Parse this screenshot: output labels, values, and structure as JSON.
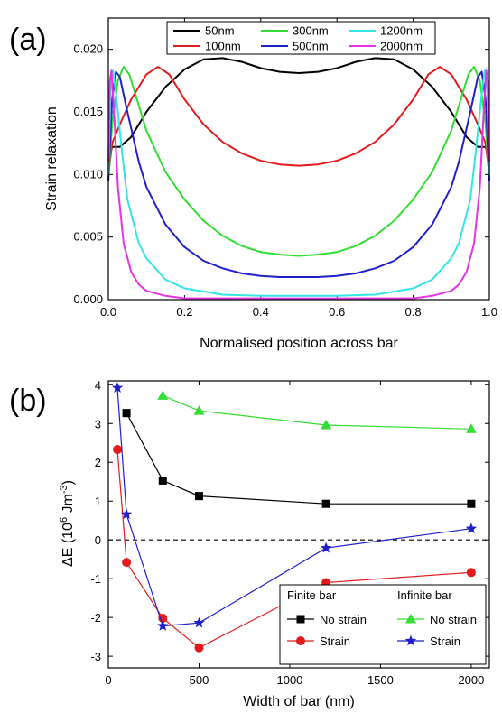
{
  "chart_data": [
    {
      "type": "line",
      "panel_label": "(a)",
      "xlabel": "Normalised position across bar",
      "ylabel": "Strain relaxation",
      "xlim": [
        0.0,
        1.0
      ],
      "ylim": [
        0.0,
        0.0225
      ],
      "xticks": [
        "0.0",
        "0.2",
        "0.4",
        "0.6",
        "0.8",
        "1.0"
      ],
      "yticks": [
        "0.000",
        "0.005",
        "0.010",
        "0.015",
        "0.020"
      ],
      "legend_position": "top",
      "series": [
        {
          "name": "50nm",
          "color": "#000000",
          "points": [
            [
              0.0,
              0.0112
            ],
            [
              0.01,
              0.0122
            ],
            [
              0.03,
              0.0122
            ],
            [
              0.06,
              0.013
            ],
            [
              0.1,
              0.015
            ],
            [
              0.15,
              0.017
            ],
            [
              0.2,
              0.0184
            ],
            [
              0.25,
              0.0192
            ],
            [
              0.3,
              0.0193
            ],
            [
              0.35,
              0.019
            ],
            [
              0.4,
              0.0185
            ],
            [
              0.45,
              0.0182
            ],
            [
              0.5,
              0.0181
            ],
            [
              0.55,
              0.0182
            ],
            [
              0.6,
              0.0185
            ],
            [
              0.65,
              0.019
            ],
            [
              0.7,
              0.0193
            ],
            [
              0.75,
              0.0192
            ],
            [
              0.8,
              0.0184
            ],
            [
              0.85,
              0.017
            ],
            [
              0.9,
              0.015
            ],
            [
              0.94,
              0.013
            ],
            [
              0.97,
              0.0122
            ],
            [
              0.99,
              0.0122
            ],
            [
              1.0,
              0.0112
            ]
          ]
        },
        {
          "name": "100nm",
          "color": "#e41a1c",
          "points": [
            [
              0.0,
              0.01
            ],
            [
              0.01,
              0.0125
            ],
            [
              0.03,
              0.014
            ],
            [
              0.06,
              0.016
            ],
            [
              0.1,
              0.018
            ],
            [
              0.13,
              0.0186
            ],
            [
              0.16,
              0.018
            ],
            [
              0.2,
              0.016
            ],
            [
              0.25,
              0.014
            ],
            [
              0.3,
              0.0126
            ],
            [
              0.35,
              0.0117
            ],
            [
              0.4,
              0.0111
            ],
            [
              0.45,
              0.0108
            ],
            [
              0.5,
              0.0107
            ],
            [
              0.55,
              0.0108
            ],
            [
              0.6,
              0.0111
            ],
            [
              0.65,
              0.0117
            ],
            [
              0.7,
              0.0126
            ],
            [
              0.75,
              0.014
            ],
            [
              0.8,
              0.016
            ],
            [
              0.84,
              0.018
            ],
            [
              0.87,
              0.0186
            ],
            [
              0.9,
              0.018
            ],
            [
              0.94,
              0.016
            ],
            [
              0.97,
              0.014
            ],
            [
              0.99,
              0.0125
            ],
            [
              1.0,
              0.01
            ]
          ]
        },
        {
          "name": "300nm",
          "color": "#33dd33",
          "points": [
            [
              0.0,
              0.0095
            ],
            [
              0.01,
              0.014
            ],
            [
              0.025,
              0.0175
            ],
            [
              0.04,
              0.0186
            ],
            [
              0.055,
              0.018
            ],
            [
              0.08,
              0.0155
            ],
            [
              0.1,
              0.0135
            ],
            [
              0.15,
              0.0102
            ],
            [
              0.2,
              0.008
            ],
            [
              0.25,
              0.0063
            ],
            [
              0.3,
              0.0051
            ],
            [
              0.35,
              0.0043
            ],
            [
              0.4,
              0.0038
            ],
            [
              0.45,
              0.0036
            ],
            [
              0.5,
              0.0035
            ],
            [
              0.55,
              0.0036
            ],
            [
              0.6,
              0.0038
            ],
            [
              0.65,
              0.0043
            ],
            [
              0.7,
              0.0051
            ],
            [
              0.75,
              0.0063
            ],
            [
              0.8,
              0.008
            ],
            [
              0.85,
              0.0102
            ],
            [
              0.9,
              0.0135
            ],
            [
              0.92,
              0.0155
            ],
            [
              0.945,
              0.018
            ],
            [
              0.96,
              0.0186
            ],
            [
              0.975,
              0.0175
            ],
            [
              0.99,
              0.014
            ],
            [
              1.0,
              0.0095
            ]
          ]
        },
        {
          "name": "500nm",
          "color": "#1f1fcc",
          "points": [
            [
              0.0,
              0.0095
            ],
            [
              0.01,
              0.016
            ],
            [
              0.02,
              0.0182
            ],
            [
              0.03,
              0.0178
            ],
            [
              0.05,
              0.015
            ],
            [
              0.08,
              0.011
            ],
            [
              0.1,
              0.009
            ],
            [
              0.15,
              0.006
            ],
            [
              0.2,
              0.0042
            ],
            [
              0.25,
              0.0031
            ],
            [
              0.3,
              0.0025
            ],
            [
              0.35,
              0.0021
            ],
            [
              0.4,
              0.0019
            ],
            [
              0.45,
              0.0018
            ],
            [
              0.5,
              0.0018
            ],
            [
              0.55,
              0.0018
            ],
            [
              0.6,
              0.0019
            ],
            [
              0.65,
              0.0021
            ],
            [
              0.7,
              0.0025
            ],
            [
              0.75,
              0.0031
            ],
            [
              0.8,
              0.0042
            ],
            [
              0.85,
              0.006
            ],
            [
              0.9,
              0.009
            ],
            [
              0.92,
              0.011
            ],
            [
              0.95,
              0.015
            ],
            [
              0.97,
              0.0178
            ],
            [
              0.98,
              0.0182
            ],
            [
              0.99,
              0.016
            ],
            [
              1.0,
              0.0095
            ]
          ]
        },
        {
          "name": "1200nm",
          "color": "#33e6e6",
          "points": [
            [
              0.0,
              0.01
            ],
            [
              0.006,
              0.017
            ],
            [
              0.012,
              0.0183
            ],
            [
              0.02,
              0.0165
            ],
            [
              0.035,
              0.012
            ],
            [
              0.05,
              0.008
            ],
            [
              0.08,
              0.0045
            ],
            [
              0.1,
              0.0033
            ],
            [
              0.15,
              0.0016
            ],
            [
              0.2,
              0.0009
            ],
            [
              0.3,
              0.0004
            ],
            [
              0.4,
              0.0003
            ],
            [
              0.5,
              0.0003
            ],
            [
              0.6,
              0.0003
            ],
            [
              0.7,
              0.0004
            ],
            [
              0.8,
              0.0009
            ],
            [
              0.85,
              0.0016
            ],
            [
              0.9,
              0.0033
            ],
            [
              0.92,
              0.0045
            ],
            [
              0.95,
              0.008
            ],
            [
              0.965,
              0.012
            ],
            [
              0.98,
              0.0165
            ],
            [
              0.988,
              0.0183
            ],
            [
              0.994,
              0.017
            ],
            [
              1.0,
              0.01
            ]
          ]
        },
        {
          "name": "2000nm",
          "color": "#e633e6",
          "points": [
            [
              0.0,
              0.011
            ],
            [
              0.004,
              0.0175
            ],
            [
              0.008,
              0.0183
            ],
            [
              0.015,
              0.015
            ],
            [
              0.025,
              0.009
            ],
            [
              0.04,
              0.0045
            ],
            [
              0.06,
              0.0022
            ],
            [
              0.08,
              0.0012
            ],
            [
              0.1,
              0.0007
            ],
            [
              0.15,
              0.0003
            ],
            [
              0.2,
              0.0001
            ],
            [
              0.5,
              0.0001
            ],
            [
              0.8,
              0.0001
            ],
            [
              0.85,
              0.0003
            ],
            [
              0.9,
              0.0007
            ],
            [
              0.92,
              0.0012
            ],
            [
              0.94,
              0.0022
            ],
            [
              0.96,
              0.0045
            ],
            [
              0.975,
              0.009
            ],
            [
              0.985,
              0.015
            ],
            [
              0.992,
              0.0183
            ],
            [
              0.996,
              0.0175
            ],
            [
              1.0,
              0.011
            ]
          ]
        }
      ]
    },
    {
      "type": "line",
      "panel_label": "(b)",
      "xlabel": "Width of bar (nm)",
      "ylabel_main": "ΔE (10",
      "ylabel_exp": "6",
      "ylabel_unit": " Jm",
      "ylabel_unit_exp": "-3",
      "ylabel_close": ")",
      "xlim": [
        0,
        2100
      ],
      "ylim": [
        -3.3,
        4.1
      ],
      "xticks": [
        "0",
        "500",
        "1000",
        "1500",
        "2000"
      ],
      "yticks": [
        "-3",
        "-2",
        "-1",
        "0",
        "1",
        "2",
        "3",
        "4"
      ],
      "reference_line": {
        "y": 0,
        "style": "dashed"
      },
      "legend_position": "bottom-right",
      "legend_headers": [
        "Finite bar",
        "Infinite bar"
      ],
      "series": [
        {
          "name": "No strain",
          "group": "Finite bar",
          "color": "#000000",
          "marker": "square",
          "x": [
            100,
            300,
            500,
            1200,
            2000
          ],
          "y": [
            3.27,
            1.53,
            1.13,
            0.93,
            0.93
          ]
        },
        {
          "name": "Strain",
          "group": "Finite bar",
          "color": "#e41a1c",
          "marker": "circle",
          "x": [
            50,
            100,
            300,
            500,
            1200,
            2000
          ],
          "y": [
            2.33,
            -0.58,
            -2.02,
            -2.78,
            -1.1,
            -0.84
          ]
        },
        {
          "name": "No strain",
          "group": "Infinite bar",
          "color": "#33dd33",
          "marker": "triangle",
          "x": [
            300,
            500,
            1200,
            2000
          ],
          "y": [
            3.72,
            3.33,
            2.96,
            2.86
          ]
        },
        {
          "name": "Strain",
          "group": "Infinite bar",
          "color": "#1f1fcc",
          "marker": "star",
          "x": [
            50,
            100,
            300,
            500,
            1200,
            2000
          ],
          "y": [
            3.92,
            0.66,
            -2.22,
            -2.14,
            -0.21,
            0.29
          ]
        }
      ]
    }
  ]
}
